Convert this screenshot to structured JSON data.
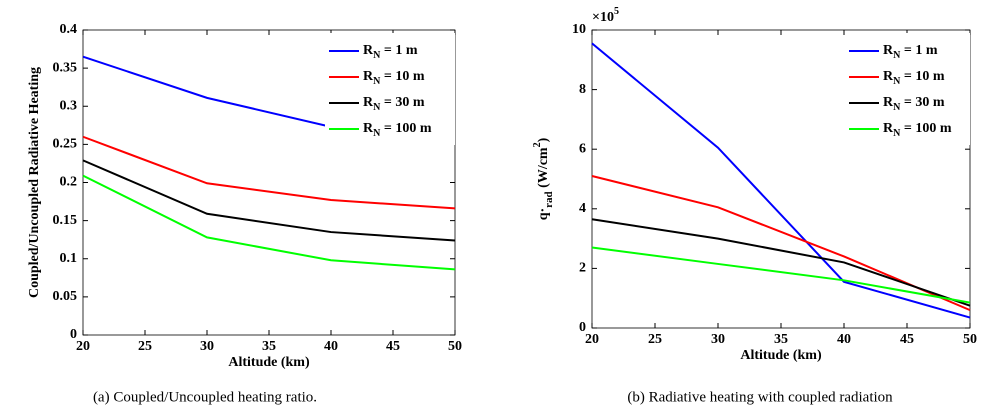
{
  "chart_data": [
    {
      "type": "line",
      "xlabel": "Altitude (km)",
      "ylabel": "Coupled/Uncoupled Radiative Heating",
      "caption": "(a) Coupled/Uncoupled heating ratio.",
      "x": [
        20,
        30,
        40,
        50
      ],
      "xlim": [
        20,
        50
      ],
      "xticks": [
        20,
        25,
        30,
        35,
        40,
        45,
        50
      ],
      "ylim": [
        0,
        0.4
      ],
      "yticks": [
        0,
        0.05,
        0.1,
        0.15,
        0.2,
        0.25,
        0.3,
        0.35,
        0.4
      ],
      "legend": "upper right",
      "series": [
        {
          "name": "RN = 1 m",
          "color": "#0000ff",
          "values": [
            0.365,
            0.311,
            0.273,
            0.282
          ]
        },
        {
          "name": "RN = 10 m",
          "color": "#ff0000",
          "values": [
            0.26,
            0.199,
            0.177,
            0.166
          ]
        },
        {
          "name": "RN = 30 m",
          "color": "#000000",
          "values": [
            0.229,
            0.159,
            0.135,
            0.124
          ]
        },
        {
          "name": "RN = 100 m",
          "color": "#00ff00",
          "values": [
            0.209,
            0.128,
            0.098,
            0.086
          ]
        }
      ]
    },
    {
      "type": "line",
      "xlabel": "Altitude (km)",
      "ylabel": "q·rad (W/cm2)",
      "yscale_label": "×105",
      "caption": "(b) Radiative heating with coupled radiation",
      "x": [
        20,
        30,
        40,
        50
      ],
      "xlim": [
        20,
        50
      ],
      "xticks": [
        20,
        25,
        30,
        35,
        40,
        45,
        50
      ],
      "ylim": [
        0,
        10
      ],
      "yticks": [
        0,
        2,
        4,
        6,
        8,
        10
      ],
      "legend": "upper right",
      "series": [
        {
          "name": "RN = 1 m",
          "color": "#0000ff",
          "values": [
            9.55,
            6.05,
            1.55,
            0.35
          ]
        },
        {
          "name": "RN = 10 m",
          "color": "#ff0000",
          "values": [
            5.1,
            4.05,
            2.4,
            0.6
          ]
        },
        {
          "name": "RN = 30 m",
          "color": "#000000",
          "values": [
            3.65,
            3.0,
            2.2,
            0.75
          ]
        },
        {
          "name": "RN = 100 m",
          "color": "#00ff00",
          "values": [
            2.7,
            2.15,
            1.6,
            0.85
          ]
        }
      ]
    }
  ]
}
